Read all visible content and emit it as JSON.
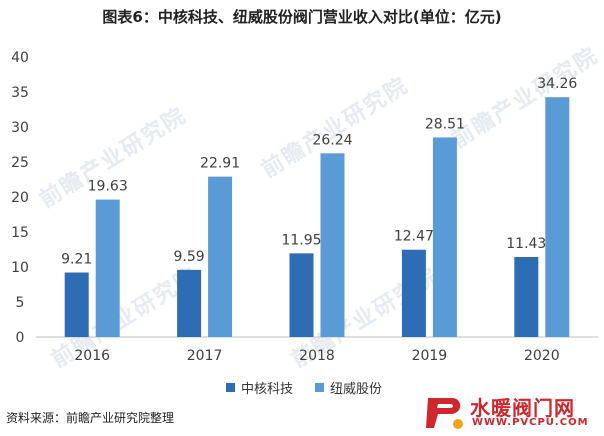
{
  "title": "图表6：中核科技、纽威股份阀门营业收入对比(单位：亿元)",
  "watermark": "前瞻产业研究院",
  "source": "资料来源：前瞻产业研究院整理",
  "brand": {
    "name": "水暖阀门网",
    "url": "WWW.PVCPU.COM"
  },
  "colors": {
    "series1": "#2e6db4",
    "series2": "#5b9bd5"
  },
  "chart_data": {
    "type": "bar",
    "categories": [
      "2016",
      "2017",
      "2018",
      "2019",
      "2020"
    ],
    "series": [
      {
        "name": "中核科技",
        "values": [
          9.21,
          9.59,
          11.95,
          12.47,
          11.43
        ]
      },
      {
        "name": "纽威股份",
        "values": [
          19.63,
          22.91,
          26.24,
          28.51,
          34.26
        ]
      }
    ],
    "ylim": [
      0,
      40
    ],
    "yticks": [
      0,
      5,
      10,
      15,
      20,
      25,
      30,
      35,
      40
    ],
    "grid": false,
    "legend": "bottom"
  }
}
